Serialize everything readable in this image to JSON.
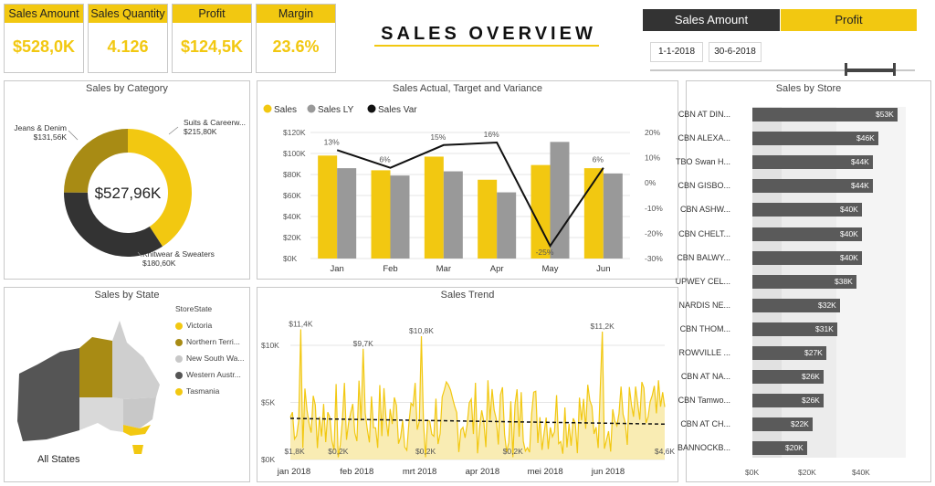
{
  "kpis": [
    {
      "label": "Sales Amount",
      "value": "$528,0K"
    },
    {
      "label": "Sales Quantity",
      "value": "4.126"
    },
    {
      "label": "Profit",
      "value": "$124,5K"
    },
    {
      "label": "Margin",
      "value": "23.6%"
    }
  ],
  "title": "SALES OVERVIEW",
  "toggle": {
    "left": "Sales Amount",
    "right": "Profit"
  },
  "date": {
    "start": "1-1-2018",
    "end": "30-6-2018"
  },
  "colors": {
    "accent": "#f2c811",
    "dark": "#333333",
    "gray": "#999999",
    "olive": "#a88b14",
    "panel_border": "#c8c8c8"
  },
  "category": {
    "title": "Sales by Category",
    "center": "$527,96K",
    "slices": [
      {
        "name": "Suits & Careerw...",
        "label": "$215,80K",
        "value": 215.8,
        "color": "#f2c811"
      },
      {
        "name": "Knitwear & Sweaters",
        "label": "$180,60K",
        "value": 180.6,
        "color": "#333333"
      },
      {
        "name": "Jeans & Denim",
        "label": "$131,56K",
        "value": 131.56,
        "color": "#a88b14"
      }
    ]
  },
  "combo": {
    "title": "Sales Actual, Target and Variance",
    "legend": [
      "Sales",
      "Sales LY",
      "Sales Var"
    ],
    "chart_data": {
      "type": "bar",
      "categories": [
        "Jan",
        "Feb",
        "Mar",
        "Apr",
        "May",
        "Jun"
      ],
      "series": [
        {
          "name": "Sales",
          "values": [
            98,
            84,
            97,
            75,
            89,
            86
          ]
        },
        {
          "name": "Sales LY",
          "values": [
            86,
            79,
            83,
            63,
            111,
            81
          ]
        },
        {
          "name": "Sales Var",
          "values": [
            13,
            6,
            15,
            16,
            -25,
            6
          ]
        }
      ],
      "var_labels": [
        "13%",
        "6%",
        "15%",
        "16%",
        "-25%",
        "6%"
      ],
      "ylim": [
        0,
        120
      ],
      "y_ticks": [
        "$0K",
        "$20K",
        "$40K",
        "$60K",
        "$80K",
        "$100K",
        "$120K"
      ],
      "y2lim": [
        -30,
        20
      ],
      "y2_ticks": [
        "-30%",
        "-20%",
        "-10%",
        "0%",
        "10%",
        "20%"
      ]
    }
  },
  "state": {
    "title": "Sales by State",
    "legend_title": "StoreState",
    "items": [
      {
        "name": "Victoria",
        "color": "#f2c811"
      },
      {
        "name": "Northern Terri...",
        "color": "#a88b14"
      },
      {
        "name": "New South Wa...",
        "color": "#c8c8c8"
      },
      {
        "name": "Western Austr...",
        "color": "#555555"
      },
      {
        "name": "Tasmania",
        "color": "#f2c811"
      }
    ],
    "all_states": "All States"
  },
  "trend": {
    "title": "Sales Trend",
    "y_ticks": [
      "$0K",
      "$5K",
      "$10K"
    ],
    "x_ticks": [
      "jan 2018",
      "feb 2018",
      "mrt 2018",
      "apr 2018",
      "mei 2018",
      "jun 2018"
    ],
    "annotations": [
      {
        "text": "$11,4K",
        "day": 5,
        "value": 11.4
      },
      {
        "text": "$9,7K",
        "day": 35,
        "value": 9.7
      },
      {
        "text": "$10,8K",
        "day": 63,
        "value": 10.8
      },
      {
        "text": "$11,2K",
        "day": 150,
        "value": 11.2
      },
      {
        "text": "$4,6K",
        "day": 180,
        "value": 4.6
      },
      {
        "text": "$1,8K",
        "day": 2,
        "value": 1.8
      },
      {
        "text": "$0,2K",
        "day": 23,
        "value": 0.2
      },
      {
        "text": "$0,2K",
        "day": 65,
        "value": 0.2
      },
      {
        "text": "$0,2K",
        "day": 107,
        "value": 0.2
      }
    ],
    "trend_start": 3.6,
    "trend_end": 3.1
  },
  "store": {
    "title": "Sales by Store",
    "x_ticks": [
      "$0K",
      "$20K",
      "$40K"
    ],
    "rows": [
      {
        "name": "CBN AT DIN...",
        "label": "$53K",
        "value": 53
      },
      {
        "name": "CBN ALEXA...",
        "label": "$46K",
        "value": 46
      },
      {
        "name": "TBO Swan H...",
        "label": "$44K",
        "value": 44
      },
      {
        "name": "CBN GISBO...",
        "label": "$44K",
        "value": 44
      },
      {
        "name": "CBN ASHW...",
        "label": "$40K",
        "value": 40
      },
      {
        "name": "CBN CHELT...",
        "label": "$40K",
        "value": 40
      },
      {
        "name": "CBN BALWY...",
        "label": "$40K",
        "value": 40
      },
      {
        "name": "UPWEY CEL...",
        "label": "$38K",
        "value": 38
      },
      {
        "name": "NARDIS NE...",
        "label": "$32K",
        "value": 32
      },
      {
        "name": "CBN THOM...",
        "label": "$31K",
        "value": 31
      },
      {
        "name": "ROWVILLE ...",
        "label": "$27K",
        "value": 27
      },
      {
        "name": "CBN AT NA...",
        "label": "$26K",
        "value": 26
      },
      {
        "name": "CBN Tamwo...",
        "label": "$26K",
        "value": 26
      },
      {
        "name": "CBN AT CH...",
        "label": "$22K",
        "value": 22
      },
      {
        "name": "BANNOCKB...",
        "label": "$20K",
        "value": 20
      }
    ]
  }
}
